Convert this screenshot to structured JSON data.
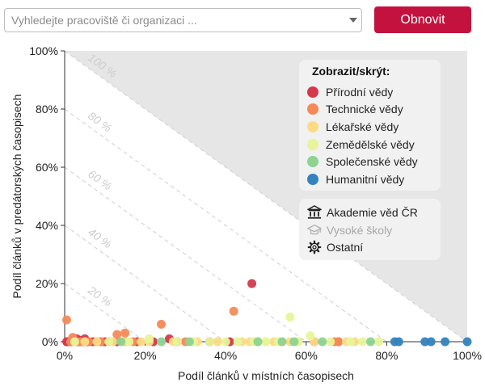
{
  "search": {
    "placeholder": "Vyhledejte pracoviště či organizaci ..."
  },
  "button": {
    "label": "Obnovit"
  },
  "legend": {
    "title": "Zobrazit/skrýt:",
    "fields": [
      {
        "label": "Přírodní vědy",
        "color": "#d23a4c"
      },
      {
        "label": "Technické vědy",
        "color": "#f58a57"
      },
      {
        "label": "Lékařské vědy",
        "color": "#fcdb85"
      },
      {
        "label": "Zemědělské vědy",
        "color": "#e8f49a"
      },
      {
        "label": "Společenské vědy",
        "color": "#8dd392"
      },
      {
        "label": "Humanitní vědy",
        "color": "#3383be"
      }
    ],
    "institutions": [
      {
        "label": "Akademie věd ČR",
        "icon": "building-columns-icon",
        "active": true
      },
      {
        "label": "Vysoké školy",
        "icon": "graduation-cap-icon",
        "active": false
      },
      {
        "label": "Ostatní",
        "icon": "gear-icon",
        "active": true
      }
    ]
  },
  "chart_data": {
    "type": "scatter",
    "xlabel": "Podíl článků v místních časopisech",
    "ylabel": "Podíl článků v predátorských časopisech",
    "xlim": [
      0,
      100
    ],
    "ylim": [
      0,
      100
    ],
    "x_ticks": [
      "0%",
      "20%",
      "40%",
      "60%",
      "80%",
      "100%"
    ],
    "y_ticks": [
      "0%",
      "20%",
      "40%",
      "60%",
      "80%",
      "100%"
    ],
    "diagonal_labels": [
      "20 %",
      "40 %",
      "60 %",
      "80 %",
      "100 %"
    ],
    "grid": false,
    "legend_position": "top-right",
    "series": [
      {
        "name": "Přírodní vědy",
        "points": [
          [
            0.5,
            0
          ],
          [
            1,
            0
          ],
          [
            1.5,
            0
          ],
          [
            2,
            0.5
          ],
          [
            2.5,
            0
          ],
          [
            3,
            1
          ],
          [
            3.5,
            0
          ],
          [
            4,
            0.5
          ],
          [
            4.5,
            0
          ],
          [
            5,
            1
          ],
          [
            5.5,
            0
          ],
          [
            6,
            0
          ],
          [
            7,
            0
          ],
          [
            8,
            0
          ],
          [
            9,
            0
          ],
          [
            10,
            0
          ],
          [
            11,
            0
          ],
          [
            13,
            0
          ],
          [
            15,
            0
          ],
          [
            18,
            0
          ],
          [
            22,
            0
          ],
          [
            26,
            1
          ],
          [
            28,
            0
          ],
          [
            36,
            0
          ],
          [
            41,
            0
          ],
          [
            46.5,
            20
          ],
          [
            62,
            0
          ],
          [
            68,
            0
          ]
        ]
      },
      {
        "name": "Technické vědy",
        "points": [
          [
            0.5,
            7.5
          ],
          [
            1.5,
            0
          ],
          [
            2,
            1.5
          ],
          [
            3,
            0
          ],
          [
            4,
            0
          ],
          [
            6,
            0
          ],
          [
            9,
            0
          ],
          [
            13,
            2.5
          ],
          [
            15,
            3
          ],
          [
            17,
            0
          ],
          [
            24,
            6
          ],
          [
            30,
            0
          ],
          [
            42,
            10.5
          ],
          [
            67,
            0
          ],
          [
            68,
            0
          ]
        ]
      },
      {
        "name": "Lékařské vědy",
        "points": [
          [
            5,
            0
          ],
          [
            8,
            0
          ],
          [
            12,
            0
          ],
          [
            15,
            0
          ],
          [
            19,
            0
          ],
          [
            21,
            0
          ],
          [
            27,
            0
          ],
          [
            33,
            0
          ],
          [
            38,
            0
          ],
          [
            44,
            0
          ],
          [
            46,
            0
          ],
          [
            48,
            0
          ],
          [
            50,
            0
          ],
          [
            52,
            0
          ],
          [
            54,
            0
          ],
          [
            56,
            0
          ],
          [
            58,
            0
          ],
          [
            62,
            0
          ],
          [
            70,
            0
          ],
          [
            72,
            0
          ]
        ]
      },
      {
        "name": "Zemědělské vědy",
        "points": [
          [
            2.5,
            0
          ],
          [
            11,
            0
          ],
          [
            16,
            0
          ],
          [
            21,
            1
          ],
          [
            28,
            0
          ],
          [
            32,
            0
          ],
          [
            36,
            0
          ],
          [
            40,
            0
          ],
          [
            43,
            0
          ],
          [
            47,
            0
          ],
          [
            50,
            0
          ],
          [
            53,
            0
          ],
          [
            56,
            8.5
          ],
          [
            58,
            0
          ],
          [
            61,
            2
          ],
          [
            66,
            0
          ],
          [
            71,
            0
          ],
          [
            74,
            0
          ],
          [
            78,
            0
          ]
        ]
      },
      {
        "name": "Společenské vědy",
        "points": [
          [
            14,
            0
          ],
          [
            24,
            0
          ],
          [
            31,
            0
          ],
          [
            48,
            0
          ],
          [
            54,
            0
          ],
          [
            57,
            0
          ],
          [
            64,
            0
          ],
          [
            76,
            0
          ]
        ]
      },
      {
        "name": "Humanitní vědy",
        "points": [
          [
            82,
            0
          ],
          [
            83,
            0
          ],
          [
            89.5,
            0
          ],
          [
            91,
            0
          ],
          [
            94.5,
            0
          ],
          [
            100,
            0
          ]
        ]
      }
    ]
  }
}
